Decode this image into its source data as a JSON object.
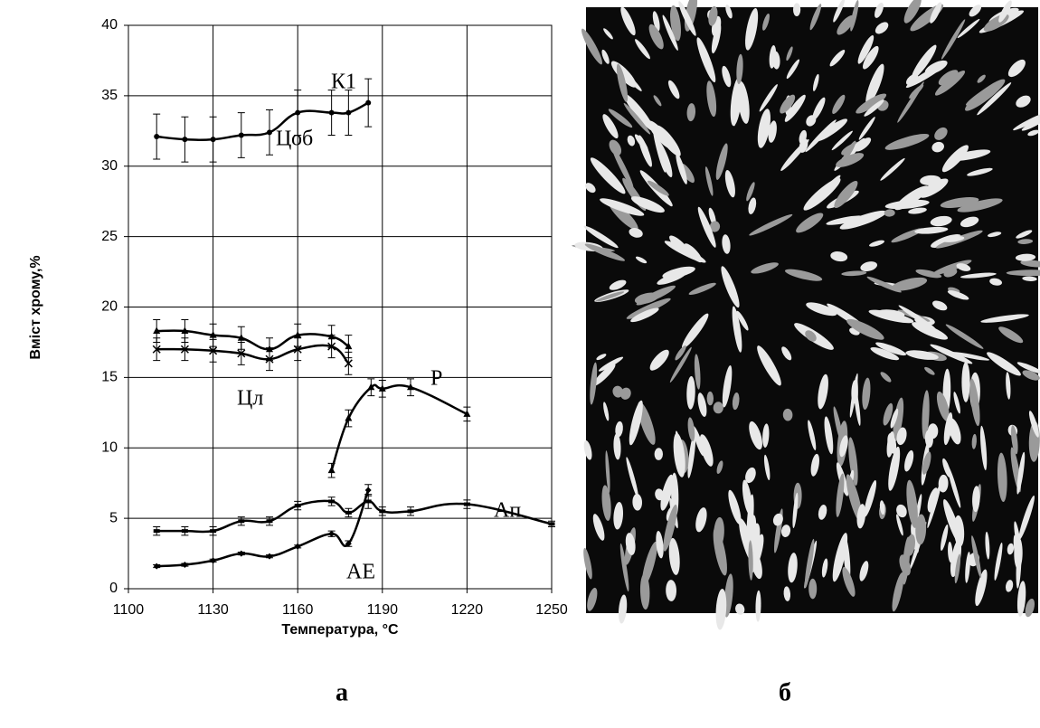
{
  "chart_data": {
    "type": "line",
    "x_label": "Температура, °С",
    "y_label": "Вміст хрому,%",
    "xlim": [
      1100,
      1250
    ],
    "xticks": [
      1100,
      1130,
      1160,
      1190,
      1220,
      1250
    ],
    "ylim": [
      0,
      40
    ],
    "yticks": [
      0,
      5,
      10,
      15,
      20,
      25,
      30,
      35,
      40
    ],
    "grid": true,
    "series": [
      {
        "name": "К1",
        "color": "#000000",
        "marker": "circle",
        "x": [
          1110,
          1120,
          1130,
          1140,
          1150,
          1160,
          1172,
          1178,
          1185
        ],
        "values": [
          32.1,
          31.9,
          31.9,
          32.2,
          32.4,
          33.8,
          33.8,
          33.8,
          34.5
        ],
        "errors": [
          1.6,
          1.6,
          1.6,
          1.6,
          1.6,
          1.6,
          1.6,
          1.6,
          1.7
        ]
      },
      {
        "name": "Цоб",
        "color": "#000000",
        "marker": "triangle",
        "x": [
          1110,
          1120,
          1130,
          1140,
          1150,
          1160,
          1172,
          1178
        ],
        "values": [
          18.3,
          18.3,
          18.0,
          17.8,
          17.0,
          18.0,
          17.9,
          17.2
        ],
        "errors": [
          0.8,
          0.8,
          0.8,
          0.8,
          0.8,
          0.8,
          0.8,
          0.8
        ]
      },
      {
        "name": "Цл",
        "color": "#000000",
        "marker": "cross",
        "x": [
          1110,
          1120,
          1130,
          1140,
          1150,
          1160,
          1172,
          1178
        ],
        "values": [
          17.0,
          17.0,
          16.9,
          16.7,
          16.3,
          17.0,
          17.2,
          16.0
        ],
        "errors": [
          0.8,
          0.8,
          0.8,
          0.8,
          0.8,
          0.8,
          0.8,
          0.8
        ]
      },
      {
        "name": "Р",
        "color": "#000000",
        "marker": "triangle",
        "x": [
          1172,
          1178,
          1186,
          1190,
          1200,
          1220
        ],
        "values": [
          8.4,
          12.1,
          14.3,
          14.2,
          14.3,
          12.4
        ],
        "errors": [
          0.5,
          0.6,
          0.6,
          0.6,
          0.6,
          0.5
        ]
      },
      {
        "name": "Ап",
        "color": "#000000",
        "marker": "square",
        "x": [
          1110,
          1120,
          1130,
          1140,
          1150,
          1160,
          1172,
          1178,
          1185,
          1190,
          1200,
          1220,
          1250
        ],
        "values": [
          4.1,
          4.1,
          4.1,
          4.8,
          4.8,
          5.9,
          6.2,
          5.4,
          6.2,
          5.5,
          5.5,
          6.0,
          4.6
        ],
        "errors": [
          0.3,
          0.3,
          0.3,
          0.3,
          0.3,
          0.3,
          0.3,
          0.3,
          0.5,
          0.3,
          0.3,
          0.3,
          0.2
        ]
      },
      {
        "name": "АЕ",
        "color": "#000000",
        "marker": "diamond",
        "x": [
          1110,
          1120,
          1130,
          1140,
          1150,
          1160,
          1172,
          1178,
          1185
        ],
        "values": [
          1.6,
          1.7,
          2.0,
          2.5,
          2.3,
          3.0,
          3.9,
          3.2,
          7.0
        ],
        "errors": [
          0.1,
          0.1,
          0.1,
          0.1,
          0.1,
          0.1,
          0.2,
          0.2,
          0.4
        ]
      }
    ]
  },
  "captions": [
    "а",
    "б"
  ]
}
